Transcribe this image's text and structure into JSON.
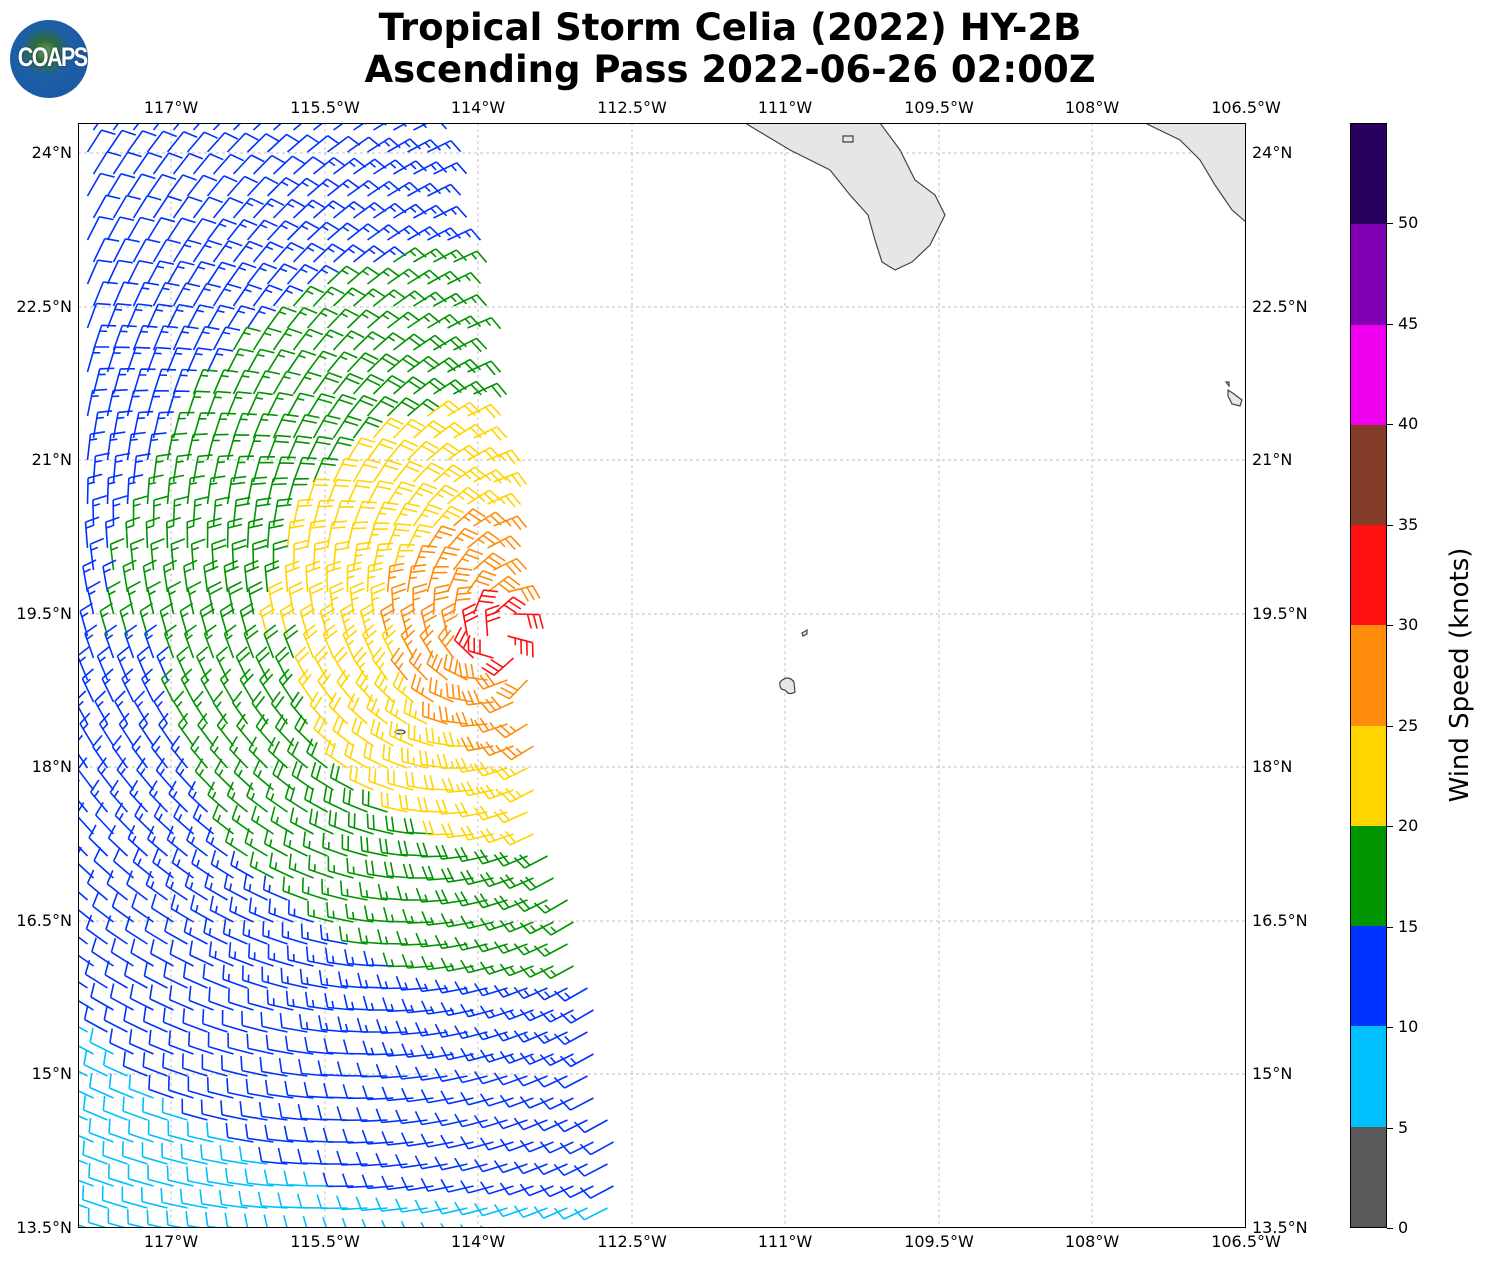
{
  "title": {
    "line1": "Tropical Storm Celia (2022) HY-2B",
    "line2": "Ascending Pass 2022-06-26 02:00Z"
  },
  "logo": {
    "text": "COAPS"
  },
  "axes": {
    "lon_labels": [
      "117°W",
      "115.5°W",
      "114°W",
      "112.5°W",
      "111°W",
      "109.5°W",
      "108°W",
      "106.5°W"
    ],
    "lat_labels": [
      "24°N",
      "22.5°N",
      "21°N",
      "19.5°N",
      "18°N",
      "16.5°N",
      "15°N",
      "13.5°N"
    ]
  },
  "colorbar": {
    "label": "Wind Speed (knots)",
    "ticks": [
      "0",
      "5",
      "10",
      "15",
      "20",
      "25",
      "30",
      "35",
      "40",
      "45",
      "50"
    ],
    "colors": [
      "#595959",
      "#00bfff",
      "#0033ff",
      "#009400",
      "#ffd400",
      "#ff8c0a",
      "#ff1010",
      "#823c28",
      "#ee00ee",
      "#8200b4",
      "#2a005f"
    ]
  },
  "colors": {
    "land": "#e6e6e6",
    "coast": "#444444",
    "grid": "#aaaaaa"
  }
}
